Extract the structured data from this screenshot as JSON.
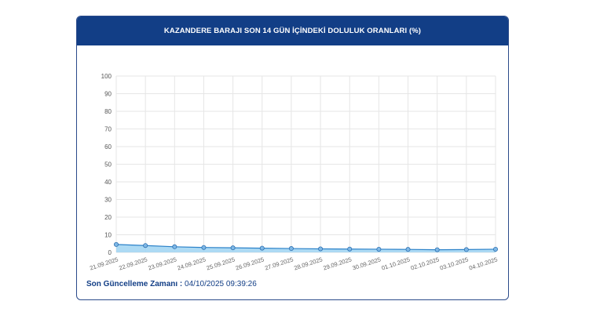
{
  "header": {
    "title": "KAZANDERE BARAJI SON 14 GÜN İÇİNDEKİ DOLULUK ORANLARI (%)"
  },
  "footer": {
    "label": "Son Güncelleme Zamanı :",
    "value": "04/10/2025 09:39:26"
  },
  "colors": {
    "header_bg": "#123e86",
    "line": "#2c82c9",
    "fill": "#9fd3f2",
    "point": "#7fb8e6",
    "grid": "#e6e6e6"
  },
  "chart_data": {
    "type": "area",
    "title": "KAZANDERE BARAJI SON 14 GÜN İÇİNDEKİ DOLULUK ORANLARI (%)",
    "categories": [
      "21.09.2025",
      "22.09.2025",
      "23.09.2025",
      "24.09.2025",
      "25.09.2025",
      "26.09.2025",
      "27.09.2025",
      "28.09.2025",
      "29.09.2025",
      "30.09.2025",
      "01.10.2025",
      "02.10.2025",
      "03.10.2025",
      "04.10.2025"
    ],
    "values": [
      4.5,
      3.9,
      3.2,
      2.8,
      2.6,
      2.4,
      2.2,
      2.0,
      1.9,
      1.8,
      1.7,
      1.5,
      1.6,
      1.8
    ],
    "yticks": [
      0,
      10,
      20,
      30,
      40,
      50,
      60,
      70,
      80,
      90,
      100
    ],
    "ylim": [
      0,
      100
    ],
    "grid": true,
    "legend": "none"
  }
}
